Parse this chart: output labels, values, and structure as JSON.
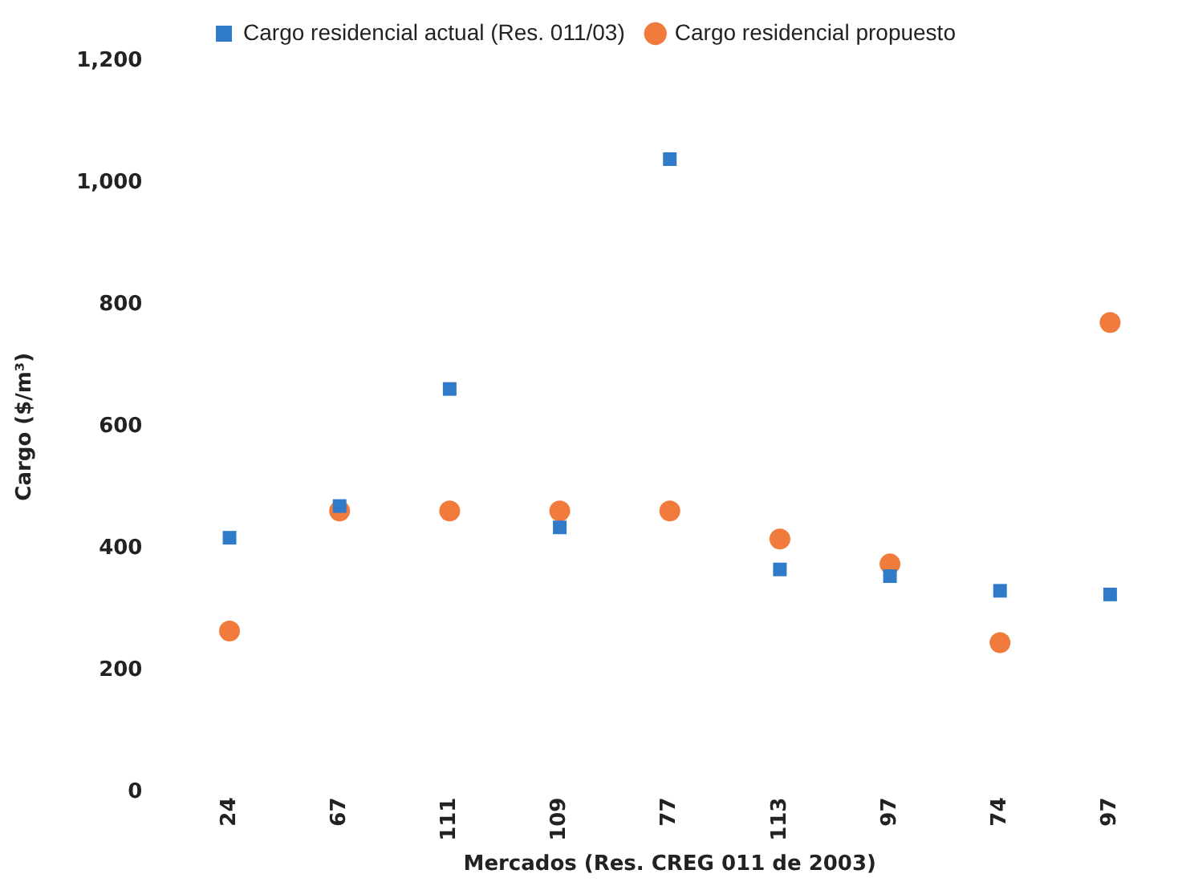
{
  "chart_data": {
    "type": "scatter",
    "xlabel": "Mercados (Res. CREG 011 de 2003)",
    "ylabel": "Cargo ($/m³)",
    "categories": [
      "24",
      "67",
      "111",
      "109",
      "77",
      "113",
      "97",
      "74",
      "97"
    ],
    "series": [
      {
        "name": "Cargo residencial actual (Res. 011/03)",
        "color": "#2f7bc9",
        "marker": "square",
        "values": [
          418,
          470,
          662,
          435,
          1039,
          366,
          355,
          331,
          325
        ]
      },
      {
        "name": "Cargo residencial propuesto",
        "color": "#f07b3c",
        "marker": "circle",
        "values": [
          265,
          462,
          462,
          462,
          462,
          416,
          375,
          246,
          771
        ]
      }
    ],
    "ylim": [
      0,
      1200
    ],
    "yticks": [
      {
        "value": 0,
        "label": "0"
      },
      {
        "value": 200,
        "label": "200"
      },
      {
        "value": 400,
        "label": "400"
      },
      {
        "value": 600,
        "label": "600"
      },
      {
        "value": 800,
        "label": "800"
      },
      {
        "value": 1000,
        "label": "1,000"
      },
      {
        "value": 1200,
        "label": "1,200"
      }
    ],
    "grid": false,
    "legend": "top"
  }
}
